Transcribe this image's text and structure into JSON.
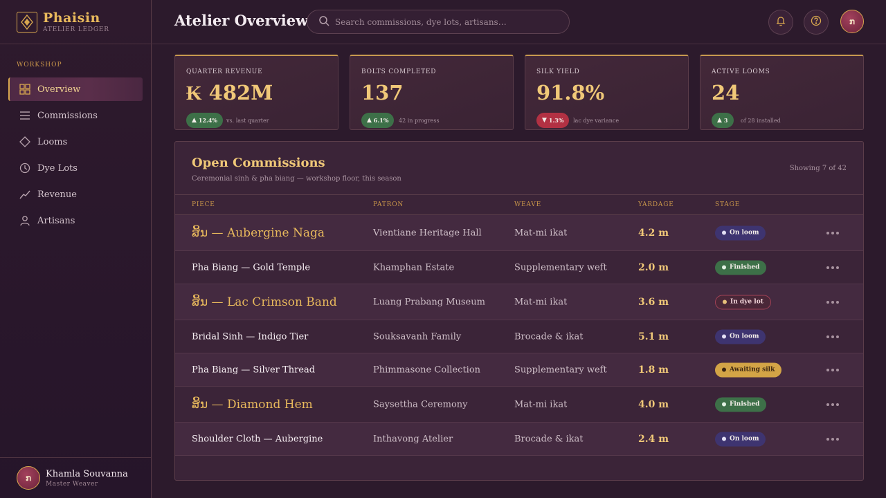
{
  "brand": {
    "name": "Phaisin",
    "subtitle": "ATELIER LEDGER"
  },
  "sidebar": {
    "section": "WORKSHOP",
    "items": [
      {
        "label": "Overview",
        "icon": "grid-icon",
        "active": true
      },
      {
        "label": "Commissions",
        "icon": "list-icon"
      },
      {
        "label": "Looms",
        "icon": "diamond-icon"
      },
      {
        "label": "Dye Lots",
        "icon": "clock-icon"
      },
      {
        "label": "Revenue",
        "icon": "trend-icon"
      },
      {
        "label": "Artisans",
        "icon": "user-icon"
      }
    ],
    "user": {
      "initial": "ກ",
      "name": "Khamla Souvanna",
      "role": "Master Weaver"
    }
  },
  "header": {
    "title": "Atelier Overview",
    "search_placeholder": "Search commissions, dye lots, artisans…",
    "avatar_initial": "ກ"
  },
  "kpis": [
    {
      "label": "QUARTER REVENUE",
      "value": "₭ 482M",
      "delta": "12.4%",
      "direction": "up",
      "note": "vs. last quarter"
    },
    {
      "label": "BOLTS COMPLETED",
      "value": "137",
      "delta": "6.1%",
      "direction": "up",
      "note": "42 in progress"
    },
    {
      "label": "SILK YIELD",
      "value": "91.8%",
      "delta": "1.3%",
      "direction": "down",
      "note": "lac dye variance"
    },
    {
      "label": "ACTIVE LOOMS",
      "value": "24",
      "delta": "3",
      "direction": "up",
      "note": "of 28 installed"
    }
  ],
  "commissions": {
    "title": "Open Commissions",
    "subtitle": "Ceremonial sinh & pha biang — workshop floor, this season",
    "count": "Showing 7 of 42",
    "columns": {
      "piece": "PIECE",
      "patron": "PATRON",
      "weave": "WEAVE",
      "yardage": "YARDAGE",
      "stage": "STAGE"
    },
    "rows": [
      {
        "piece": "ສິ້ນ — Aubergine Naga",
        "lao": true,
        "patron": "Vientiane Heritage Hall",
        "weave": "Mat-mi ikat",
        "yardage": "4.2 m",
        "stage": "On loom",
        "stage_type": "onloom"
      },
      {
        "piece": "Pha Biang — Gold Temple",
        "lao": false,
        "patron": "Khamphan Estate",
        "weave": "Supplementary weft",
        "yardage": "2.0 m",
        "stage": "Finished",
        "stage_type": "finished"
      },
      {
        "piece": "ສິ້ນ — Lac Crimson Band",
        "lao": true,
        "patron": "Luang Prabang Museum",
        "weave": "Mat-mi ikat",
        "yardage": "3.6 m",
        "stage": "In dye lot",
        "stage_type": "dye"
      },
      {
        "piece": "Bridal Sinh — Indigo Tier",
        "lao": false,
        "patron": "Souksavanh Family",
        "weave": "Brocade & ikat",
        "yardage": "5.1 m",
        "stage": "On loom",
        "stage_type": "onloom"
      },
      {
        "piece": "Pha Biang — Silver Thread",
        "lao": false,
        "patron": "Phimmasone Collection",
        "weave": "Supplementary weft",
        "yardage": "1.8 m",
        "stage": "Awaiting silk",
        "stage_type": "await"
      },
      {
        "piece": "ສິ້ນ — Diamond Hem",
        "lao": true,
        "patron": "Saysettha Ceremony",
        "weave": "Mat-mi ikat",
        "yardage": "4.0 m",
        "stage": "Finished",
        "stage_type": "finished"
      },
      {
        "piece": "Shoulder Cloth — Aubergine",
        "lao": false,
        "patron": "Inthavong Atelier",
        "weave": "Brocade & ikat",
        "yardage": "2.4 m",
        "stage": "On loom",
        "stage_type": "onloom"
      }
    ]
  }
}
